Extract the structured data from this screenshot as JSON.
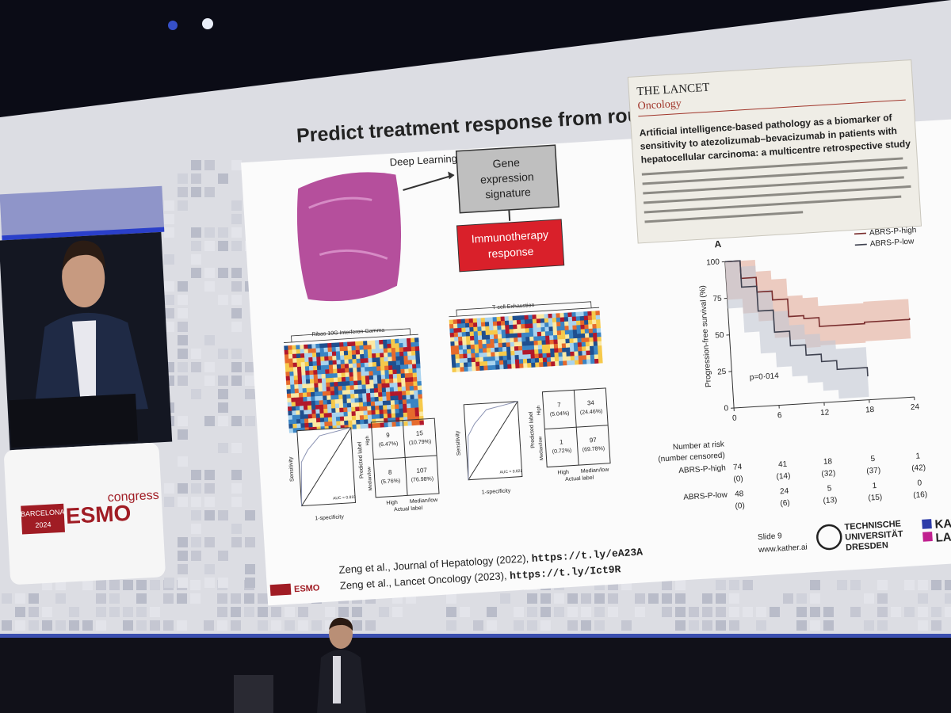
{
  "slide": {
    "title": "Predict treatment response from routine pathology sli",
    "diagram": {
      "input_label": "Deep Learning",
      "signature": [
        "Gene",
        "expression",
        "signature"
      ],
      "outcome": [
        "Immunotherapy",
        "response"
      ]
    },
    "heatmaps": [
      "Ribas 10G Interferon Gamma",
      "T-cell Exhaustion"
    ],
    "classifiers": [
      {
        "cells": [
          "9",
          "(6.47%)",
          "15",
          "(10.79%)",
          "8",
          "(5.76%)",
          "107",
          "(76.98%)"
        ],
        "auc": "AUC = 0.810"
      },
      {
        "cells": [
          "7",
          "(5.04%)",
          "34",
          "(24.46%)",
          "1",
          "(0.72%)",
          "97",
          "(69.78%)"
        ],
        "auc": "AUC = 0.821"
      }
    ],
    "axis_labels": {
      "sensitivity": "Sensitivity",
      "specificity": "1-specificity",
      "predicted": "Predicted label",
      "actual": "Actual label",
      "high": "High",
      "median_low": "Median/low"
    },
    "citations": [
      {
        "text": "Zeng et al., Journal of Hepatology (2022), ",
        "link": "https://t.ly/eA23A"
      },
      {
        "text": "Zeng et al., Lancet Oncology (2023), ",
        "link": "https://t.ly/Ict9R"
      }
    ],
    "lancet": {
      "journal": "THE LANCET",
      "section": "Oncology",
      "headline": [
        "Artificial intelligence-based pathology as a biomarker of",
        "sensitivity to atezolizumab–bevacizumab in patients with",
        "hepatocellular carcinoma: a multicentre retrospective study"
      ]
    },
    "km": {
      "panel": "A",
      "y_label": "Progression-free survival (%)",
      "xlim": [
        0,
        24
      ],
      "ylim": [
        0,
        100
      ],
      "xticks": [
        0,
        6,
        12,
        18,
        24
      ],
      "yticks": [
        0,
        25,
        50,
        75,
        100
      ],
      "p_value": "p=0·014",
      "series": [
        {
          "name": "ABRS-P-high",
          "color": "#7a2e2e",
          "x": [
            0,
            2,
            4,
            6,
            8,
            10,
            12,
            18,
            24
          ],
          "values": [
            100,
            88,
            78,
            72,
            60,
            58,
            52,
            53,
            54
          ]
        },
        {
          "name": "ABRS-P-low",
          "color": "#3f4250",
          "x": [
            0,
            2,
            4,
            6,
            8,
            10,
            12,
            14,
            18
          ],
          "values": [
            100,
            82,
            65,
            50,
            40,
            33,
            28,
            22,
            16
          ]
        }
      ],
      "risk_title": [
        "Number at risk",
        "(number censored)"
      ],
      "risk_rows": [
        {
          "name": "ABRS-P-high",
          "at_risk": [
            74,
            41,
            18,
            5,
            1
          ],
          "censored": [
            "(0)",
            "(14)",
            "(32)",
            "(37)",
            "(42)"
          ]
        },
        {
          "name": "ABRS-P-low",
          "at_risk": [
            48,
            24,
            5,
            1,
            0
          ],
          "censored": [
            "(0)",
            "(6)",
            "(13)",
            "(15)",
            "(16)"
          ]
        }
      ]
    },
    "footer": {
      "slide": "Slide 9",
      "site": "www.kather.ai",
      "university": [
        "TECHNISCHE",
        "UNIVERSITÄT",
        "DRESDEN"
      ],
      "lab": [
        "KATH",
        "LAB"
      ]
    }
  },
  "event": {
    "city": "BARCELONA",
    "year": "2024",
    "brand": "ESMO",
    "word": "congress"
  }
}
